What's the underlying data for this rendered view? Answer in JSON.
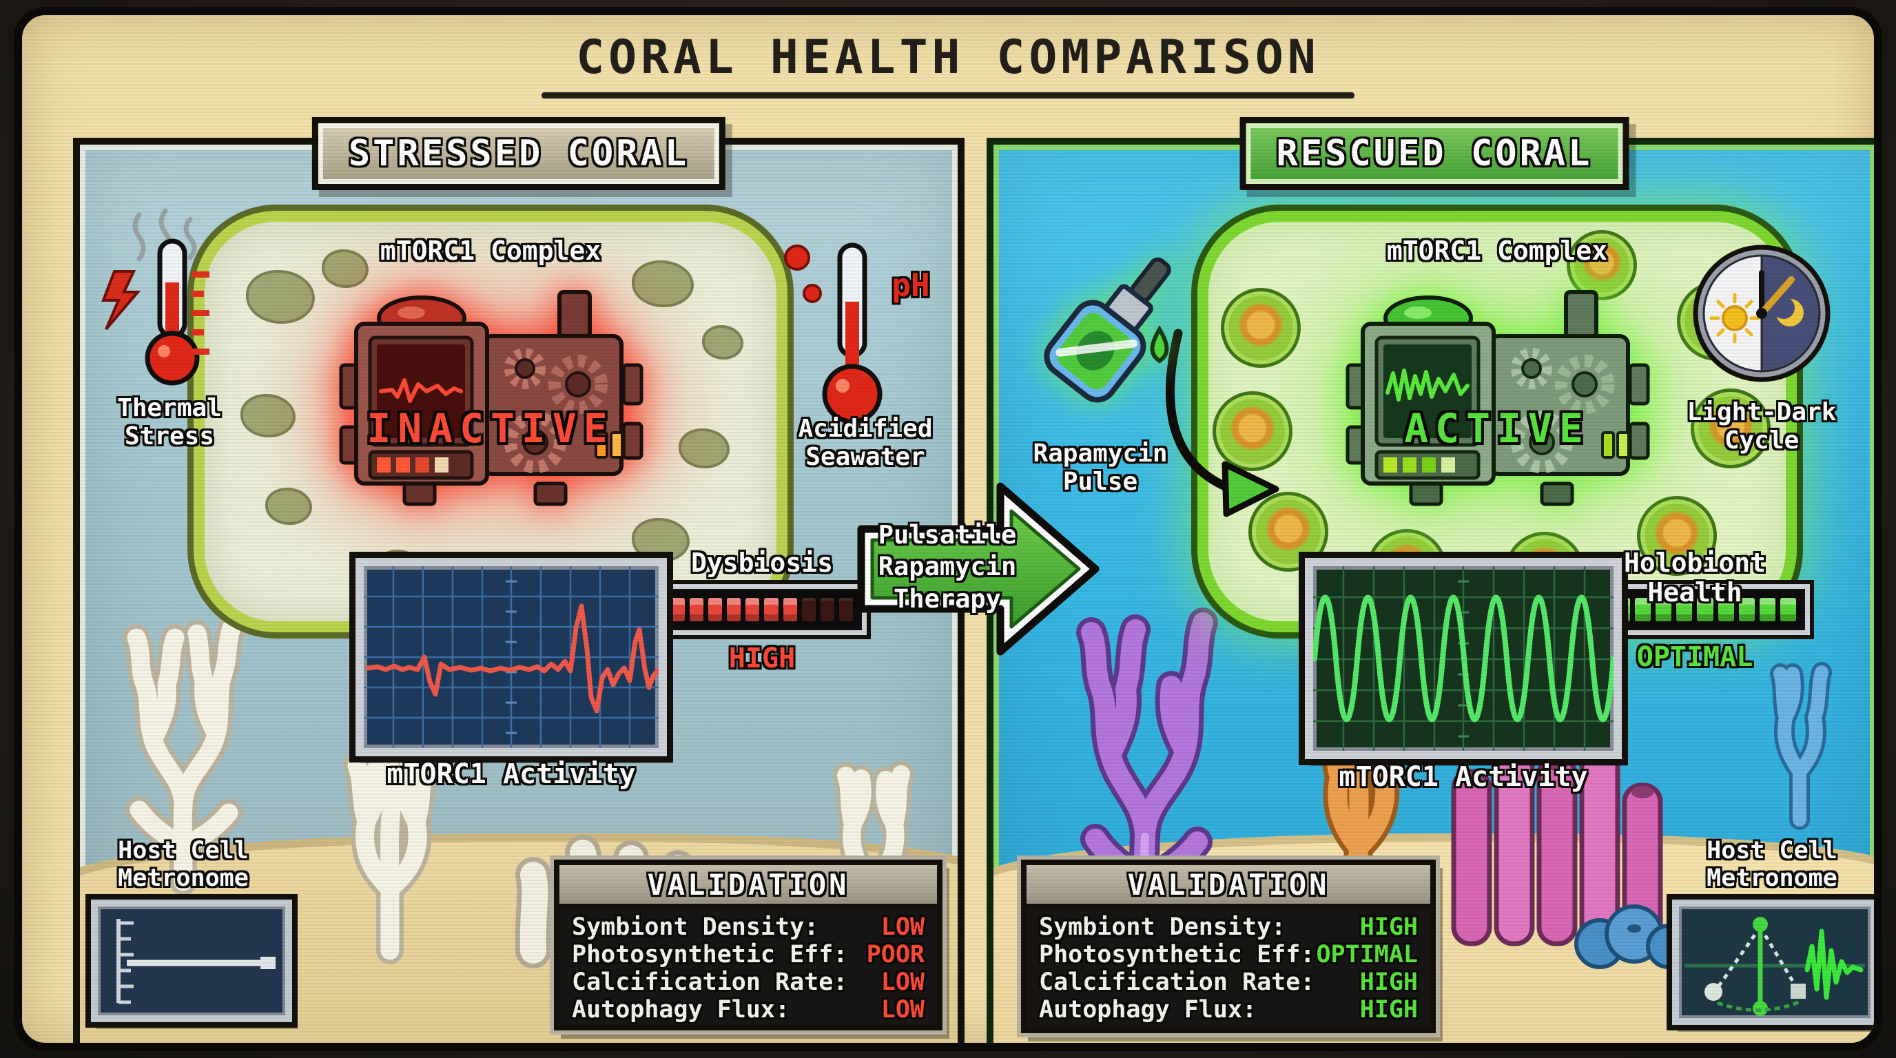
{
  "title": "CORAL HEALTH COMPARISON",
  "center_arrow": {
    "line1": "Pulsatile",
    "line2": "Rapamycin",
    "line3": "Therapy"
  },
  "colors": {
    "status_red": "#ff4a38",
    "status_green": "#58e43c",
    "arrow_green": "#4cb838",
    "left_water": "#a3c6cf",
    "right_water": "#38b8e4",
    "sand": "#eed9a2"
  },
  "left_panel": {
    "header": "STRESSED CORAL",
    "thermal": {
      "line1": "Thermal",
      "line2": "Stress"
    },
    "cell_title": "mTORC1 Complex",
    "machine_status": "INACTIVE",
    "ph_label": "pH",
    "seawater": {
      "line1": "Acidified",
      "line2": "Seawater"
    },
    "dysbiosis_label": "Dysbiosis",
    "dysbiosis_level": "HIGH",
    "dysbiosis_meter": {
      "segments_total": 10,
      "segments_lit": 7,
      "on": "#e8463a",
      "off": "#3c1814"
    },
    "scope_label": "mTORC1 Activity",
    "metronome": {
      "line1": "Host Cell",
      "line2": "Metronome"
    },
    "validation": {
      "title": "VALIDATION",
      "rows": [
        {
          "label": "Symbiont Density:",
          "value": "LOW"
        },
        {
          "label": "Photosynthetic Eff:",
          "value": "POOR"
        },
        {
          "label": "Calcification Rate:",
          "value": "LOW"
        },
        {
          "label": "Autophagy Flux:",
          "value": "LOW"
        }
      ]
    }
  },
  "right_panel": {
    "header": "RESCUED CORAL",
    "rapamycin": {
      "line1": "Rapamycin",
      "line2": "Pulse"
    },
    "cell_title": "mTORC1 Complex",
    "machine_status": "ACTIVE",
    "cycle": {
      "line1": "Light-Dark",
      "line2": "Cycle"
    },
    "health_label": "Holobiont Health",
    "health_level": "OPTIMAL",
    "health_meter": {
      "segments_total": 10,
      "segments_lit": 10,
      "on": "#56d83a",
      "off": "#1c3a16"
    },
    "scope_label": "mTORC1 Activity",
    "metronome": {
      "line1": "Host Cell",
      "line2": "Metronome"
    },
    "validation": {
      "title": "VALIDATION",
      "rows": [
        {
          "label": "Symbiont Density:",
          "value": "HIGH"
        },
        {
          "label": "Photosynthetic Eff:",
          "value": "OPTIMAL"
        },
        {
          "label": "Calcification Rate:",
          "value": "HIGH"
        },
        {
          "label": "Autophagy Flux:",
          "value": "HIGH"
        }
      ]
    }
  }
}
